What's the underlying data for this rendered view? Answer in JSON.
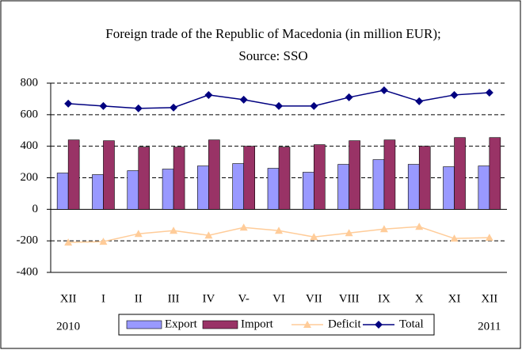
{
  "chart_data": {
    "type": "bar",
    "title": "Foreign trade of the Republic of Macedonia (in million EUR);",
    "subtitle": "Source: SSO",
    "categories": [
      "XII",
      "I",
      "II",
      "III",
      "IV",
      "V-",
      "VI",
      "VII",
      "VIII",
      "IX",
      "X",
      "XI",
      "XII"
    ],
    "annotations": [
      "2010",
      "2011"
    ],
    "series": [
      {
        "name": "Export",
        "type": "bar",
        "color": "#9999ff",
        "values": [
          230,
          220,
          245,
          255,
          275,
          290,
          260,
          235,
          285,
          315,
          285,
          270,
          275
        ]
      },
      {
        "name": "Import",
        "type": "bar",
        "color": "#993366",
        "values": [
          440,
          435,
          395,
          395,
          440,
          400,
          395,
          410,
          435,
          440,
          400,
          455,
          455
        ]
      },
      {
        "name": "Deficit",
        "type": "line",
        "marker": "triangle",
        "color": "#ffcc99",
        "values": [
          -210,
          -205,
          -155,
          -135,
          -165,
          -115,
          -135,
          -175,
          -150,
          -125,
          -110,
          -185,
          -180
        ]
      },
      {
        "name": "Total",
        "type": "line",
        "marker": "diamond",
        "color": "#000080",
        "values": [
          670,
          655,
          640,
          645,
          725,
          695,
          655,
          655,
          710,
          755,
          685,
          725,
          740
        ]
      }
    ],
    "ylim": [
      -400,
      800
    ],
    "yticks": [
      -400,
      -200,
      0,
      200,
      400,
      600,
      800
    ],
    "grid": true,
    "legend": "bottom"
  }
}
